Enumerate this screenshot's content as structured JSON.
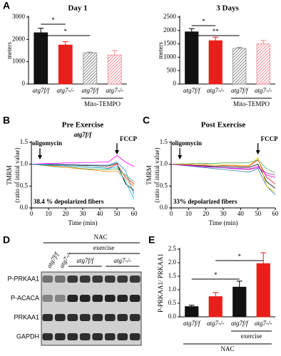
{
  "panels": [
    "A",
    "B",
    "C",
    "D",
    "E"
  ],
  "chart_data": [
    {
      "type": "bar",
      "title": "Day 1",
      "y_label": "meters",
      "categories": [
        "atg7f/f",
        "atg7-/-",
        "atg7f/f",
        "atg7-/-"
      ],
      "values": [
        2300,
        1750,
        1400,
        1300
      ],
      "errors": [
        200,
        150,
        30,
        200
      ],
      "colors": [
        "#111111",
        "#e8201c",
        "#8a8a8a",
        "#f08a94"
      ],
      "hatched": [
        false,
        false,
        true,
        true
      ],
      "ylim": [
        0,
        3000
      ],
      "yticks": [
        0,
        1000,
        2000,
        3000
      ],
      "annotations": [
        "*",
        "*"
      ],
      "group_label": "Mito-TEMPO"
    },
    {
      "type": "bar",
      "title": "3 Days",
      "y_label": "meters",
      "categories": [
        "atg7f/f",
        "atg7-/-",
        "atg7f/f",
        "atg7-/-"
      ],
      "values": [
        1950,
        1620,
        1330,
        1500
      ],
      "errors": [
        120,
        130,
        40,
        130
      ],
      "colors": [
        "#111111",
        "#e8201c",
        "#8a8a8a",
        "#f08a94"
      ],
      "hatched": [
        false,
        false,
        true,
        true
      ],
      "ylim": [
        0,
        2500
      ],
      "yticks": [
        0,
        500,
        1000,
        1500,
        2000,
        2500
      ],
      "annotations": [
        "*",
        "**"
      ],
      "group_label": "Mito-TEMPO"
    },
    {
      "type": "line",
      "title": "Pre Exercise",
      "subtitle": "atg7f/f",
      "y_label": [
        "TMRM",
        "(ratio of initial value)"
      ],
      "x_label": "Time (min)",
      "annotations": [
        "oligomycin",
        "FCCP",
        "38.4 % depolarized fibers"
      ],
      "x": [
        0,
        5,
        10,
        15,
        20,
        25,
        30,
        35,
        40,
        45,
        50,
        55,
        60
      ],
      "series": [
        {
          "color": "#000000",
          "values": [
            1,
            1,
            0.99,
            0.99,
            0.98,
            0.98,
            0.97,
            0.97,
            0.96,
            0.96,
            1.02,
            0.55,
            0.4
          ]
        },
        {
          "color": "#e41a1c",
          "values": [
            1,
            0.99,
            0.98,
            0.97,
            0.96,
            0.95,
            0.94,
            0.93,
            0.92,
            0.91,
            1.0,
            0.7,
            0.55
          ]
        },
        {
          "color": "#377eb8",
          "values": [
            1,
            1,
            1,
            1,
            0.99,
            0.99,
            0.99,
            0.98,
            0.98,
            0.98,
            1.05,
            0.85,
            0.3
          ]
        },
        {
          "color": "#4daf4a",
          "values": [
            1,
            0.98,
            0.96,
            0.94,
            0.93,
            0.92,
            0.9,
            0.89,
            0.88,
            0.87,
            0.9,
            0.75,
            0.6
          ]
        },
        {
          "color": "#ff00ff",
          "values": [
            1,
            1.01,
            1.02,
            1.02,
            1.03,
            1.03,
            1.04,
            1.04,
            1.05,
            1.05,
            1.2,
            1.05,
            0.95
          ]
        },
        {
          "color": "#ff7f00",
          "values": [
            1,
            0.99,
            0.97,
            0.95,
            0.93,
            0.91,
            0.89,
            0.87,
            0.85,
            0.83,
            0.85,
            0.65,
            0.5
          ]
        },
        {
          "color": "#00bcd4",
          "values": [
            1,
            0.99,
            0.98,
            0.97,
            0.96,
            0.95,
            0.94,
            0.93,
            0.92,
            0.9,
            0.95,
            0.6,
            0.2
          ]
        }
      ],
      "xlim": [
        0,
        60
      ],
      "xticks": [
        0,
        10,
        20,
        30,
        40,
        50,
        60
      ],
      "ylim": [
        0,
        1.5
      ],
      "yticks": [
        {
          "value": 0,
          "label": "0.0"
        },
        0.5,
        {
          "value": 1,
          "label": "1.0"
        },
        1.5
      ]
    },
    {
      "type": "line",
      "title": "Post Exercise",
      "y_label": [
        "TMRM",
        "(ratio of initial value)"
      ],
      "x_label": "Time (min)",
      "annotations": [
        "oligomycin",
        "FCCP",
        "33% depolarized fibers"
      ],
      "x": [
        0,
        5,
        10,
        15,
        20,
        25,
        30,
        35,
        40,
        45,
        50,
        55,
        60
      ],
      "series": [
        {
          "color": "#000000",
          "values": [
            1,
            0.99,
            0.98,
            0.97,
            0.96,
            0.95,
            0.95,
            0.94,
            0.93,
            0.93,
            1.0,
            0.6,
            0.45
          ]
        },
        {
          "color": "#e41a1c",
          "values": [
            1,
            1,
            0.99,
            0.99,
            0.98,
            0.98,
            0.97,
            0.97,
            0.96,
            0.96,
            1.1,
            0.7,
            0.55
          ]
        },
        {
          "color": "#377eb8",
          "values": [
            1,
            0.98,
            0.96,
            0.94,
            0.92,
            0.9,
            0.88,
            0.86,
            0.84,
            0.82,
            0.9,
            0.5,
            0.3
          ]
        },
        {
          "color": "#4daf4a",
          "values": [
            1,
            1.01,
            1.01,
            1.02,
            1.02,
            1.02,
            1.03,
            1.03,
            1.03,
            1.04,
            1.1,
            0.9,
            0.8
          ]
        },
        {
          "color": "#ff00ff",
          "values": [
            1,
            0.99,
            0.98,
            0.96,
            0.95,
            0.93,
            0.92,
            0.91,
            0.9,
            0.89,
            0.95,
            0.75,
            0.7
          ]
        },
        {
          "color": "#e6c200",
          "values": [
            1,
            1,
            1,
            0.99,
            0.99,
            0.98,
            0.98,
            0.98,
            0.97,
            0.97,
            1.15,
            0.5,
            0.35
          ]
        },
        {
          "color": "#9c27b0",
          "values": [
            1,
            0.98,
            0.97,
            0.95,
            0.94,
            0.93,
            0.92,
            0.9,
            0.89,
            0.88,
            0.92,
            0.8,
            0.75
          ]
        }
      ],
      "xlim": [
        0,
        60
      ],
      "xticks": [
        0,
        10,
        20,
        30,
        40,
        50,
        60
      ],
      "ylim": [
        0,
        1.5
      ],
      "yticks": [
        {
          "value": 0,
          "label": "0.0"
        },
        0.5,
        {
          "value": 1,
          "label": "1.0"
        },
        1.5
      ]
    },
    {
      "type": "bar",
      "y_label": "P-PRKAA1/ PRKAA1",
      "categories": [
        "atg7f/f",
        "atg7-/-",
        "atg7f/f",
        "atg7-/-"
      ],
      "values": [
        0.38,
        0.75,
        1.1,
        1.97
      ],
      "errors": [
        0.05,
        0.15,
        0.22,
        0.4
      ],
      "colors": [
        "#111111",
        "#e8201c",
        "#111111",
        "#e8201c"
      ],
      "hatched": [
        false,
        false,
        false,
        false
      ],
      "ylim": [
        0,
        2.5
      ],
      "yticks": [
        {
          "value": 0,
          "label": "0.0"
        },
        0.5,
        {
          "value": 1,
          "label": "1.0"
        },
        1.5,
        {
          "value": 2,
          "label": "2.0"
        },
        2.5
      ],
      "annotations": [
        "*",
        "*"
      ],
      "group_labels": [
        "exercise",
        "NAC"
      ]
    }
  ],
  "blot": {
    "top_label": "NAC",
    "exercise_label": "exercise",
    "lane_labels": [
      "atg7f/f",
      "atg7-/-"
    ],
    "group_labels": [
      "atg7f/f",
      "atg7-/-"
    ],
    "rows": [
      "P-PRKAA1",
      "P-ACACA",
      "PRKAA1",
      "GAPDH"
    ]
  }
}
